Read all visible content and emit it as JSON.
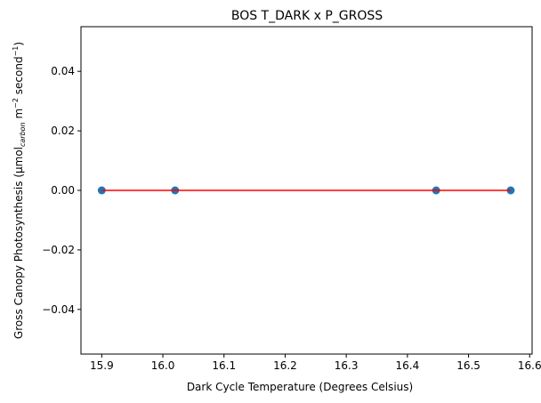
{
  "chart_data": {
    "type": "scatter",
    "title": "BOS T_DARK x P_GROSS",
    "xlabel": "Dark Cycle Temperature (Degrees Celsius)",
    "ylabel": {
      "main": "Gross Canopy Photosynthesis (μmol",
      "sub": "carbon",
      "mid1": " m",
      "sup1": "−2",
      "mid2": " second",
      "sup2": "−1",
      "end": ")"
    },
    "xlim": [
      15.866,
      16.604
    ],
    "ylim": [
      -0.055,
      0.055
    ],
    "xticks": [
      15.9,
      16.0,
      16.1,
      16.2,
      16.3,
      16.4,
      16.5,
      16.6
    ],
    "xtick_labels": [
      "15.9",
      "16.0",
      "16.1",
      "16.2",
      "16.3",
      "16.4",
      "16.5",
      "16.6"
    ],
    "yticks": [
      -0.04,
      -0.02,
      0.0,
      0.02,
      0.04
    ],
    "ytick_labels": [
      "−0.04",
      "−0.02",
      "0.00",
      "0.02",
      "0.04"
    ],
    "grid": false,
    "series": [
      {
        "kind": "scatter",
        "color": "#1f77b4",
        "x": [
          15.9,
          16.02,
          16.447,
          16.569
        ],
        "y": [
          0,
          0,
          0,
          0
        ]
      },
      {
        "kind": "line",
        "color": "#ff0000",
        "x": [
          15.9,
          16.569
        ],
        "y": [
          0,
          0
        ]
      }
    ]
  }
}
